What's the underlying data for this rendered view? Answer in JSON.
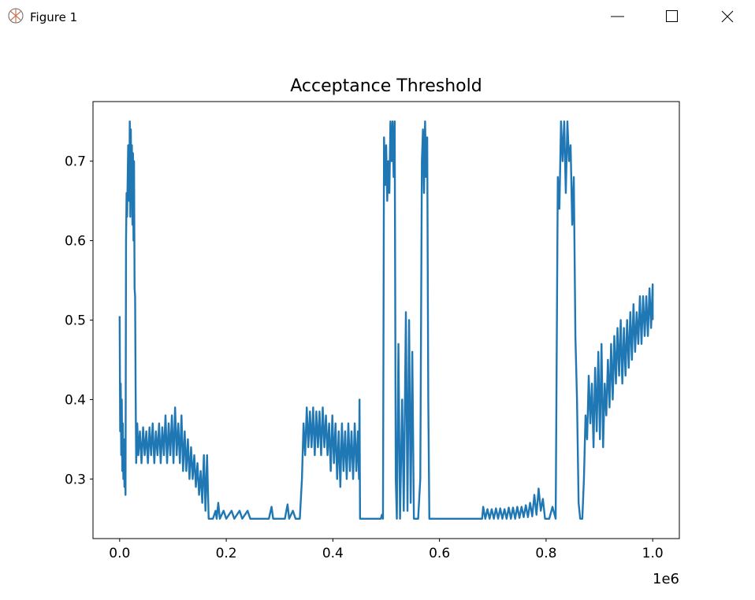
{
  "window": {
    "title": "Figure 1"
  },
  "chart_data": {
    "type": "line",
    "title": "Acceptance Threshold",
    "x": [
      0,
      1000,
      2000,
      3000,
      4000,
      5000,
      6000,
      7000,
      8000,
      9000,
      10000,
      11000,
      12000,
      13000,
      14000,
      16000,
      18000,
      19000,
      20000,
      21000,
      22000,
      23000,
      24000,
      25000,
      26000,
      27000,
      28000,
      29000,
      30000,
      31000,
      33000,
      35000,
      38000,
      41000,
      44000,
      47000,
      50000,
      53000,
      56000,
      59000,
      62000,
      65000,
      68000,
      71000,
      74000,
      77000,
      80000,
      83000,
      86000,
      89000,
      92000,
      95000,
      98000,
      101000,
      104000,
      107000,
      110000,
      113000,
      116000,
      119000,
      122000,
      125000,
      128000,
      131000,
      134000,
      137000,
      140000,
      143000,
      146000,
      149000,
      152000,
      155000,
      158000,
      161000,
      164000,
      167000,
      175000,
      180000,
      182000,
      185000,
      188000,
      195000,
      200000,
      210000,
      215000,
      225000,
      230000,
      240000,
      245000,
      280000,
      285000,
      288000,
      310000,
      315000,
      318000,
      325000,
      330000,
      338000,
      342000,
      345000,
      348000,
      351000,
      354000,
      357000,
      360000,
      363000,
      366000,
      369000,
      372000,
      375000,
      378000,
      381000,
      384000,
      387000,
      390000,
      393000,
      396000,
      399000,
      402000,
      405000,
      408000,
      411000,
      414000,
      417000,
      420000,
      423000,
      426000,
      429000,
      432000,
      435000,
      438000,
      441000,
      444000,
      447000,
      449000,
      450000,
      451000,
      490000,
      492000,
      494000,
      496000,
      498000,
      500000,
      502000,
      504000,
      506000,
      508000,
      510000,
      512000,
      514000,
      516000,
      518000,
      520000,
      523000,
      526000,
      530000,
      533000,
      537000,
      540000,
      543000,
      546000,
      549000,
      552000,
      560000,
      564000,
      567000,
      569000,
      571000,
      573000,
      575000,
      577000,
      579000,
      581000,
      600000,
      680000,
      682000,
      686000,
      690000,
      694000,
      698000,
      702000,
      706000,
      710000,
      714000,
      718000,
      722000,
      726000,
      730000,
      734000,
      738000,
      742000,
      746000,
      750000,
      754000,
      758000,
      762000,
      766000,
      770000,
      774000,
      778000,
      782000,
      786000,
      790000,
      794000,
      798000,
      806000,
      812000,
      818000,
      822000,
      825000,
      828000,
      831000,
      834000,
      837000,
      840000,
      843000,
      846000,
      849000,
      852000,
      855000,
      858000,
      861000,
      864000,
      868000,
      871000,
      874000,
      877000,
      880000,
      883000,
      886000,
      889000,
      892000,
      895000,
      898000,
      901000,
      904000,
      907000,
      910000,
      913000,
      916000,
      919000,
      922000,
      925000,
      928000,
      931000,
      934000,
      937000,
      940000,
      943000,
      946000,
      949000,
      952000,
      955000,
      958000,
      961000,
      964000,
      967000,
      970000,
      973000,
      976000,
      979000,
      982000,
      985000,
      988000,
      991000,
      994000,
      997000,
      1000000,
      1000000
    ],
    "series": [
      {
        "color": "#1f77b4",
        "values": [
          0.505,
          0.36,
          0.42,
          0.33,
          0.4,
          0.31,
          0.37,
          0.3,
          0.35,
          0.29,
          0.33,
          0.28,
          0.6,
          0.66,
          0.63,
          0.72,
          0.65,
          0.75,
          0.63,
          0.74,
          0.65,
          0.72,
          0.62,
          0.71,
          0.6,
          0.7,
          0.54,
          0.53,
          0.41,
          0.32,
          0.37,
          0.33,
          0.36,
          0.32,
          0.365,
          0.33,
          0.36,
          0.32,
          0.365,
          0.33,
          0.37,
          0.32,
          0.36,
          0.33,
          0.37,
          0.32,
          0.365,
          0.33,
          0.38,
          0.32,
          0.37,
          0.33,
          0.38,
          0.32,
          0.39,
          0.33,
          0.37,
          0.32,
          0.38,
          0.31,
          0.36,
          0.31,
          0.35,
          0.3,
          0.34,
          0.3,
          0.33,
          0.29,
          0.32,
          0.28,
          0.31,
          0.27,
          0.33,
          0.26,
          0.33,
          0.25,
          0.25,
          0.26,
          0.25,
          0.27,
          0.25,
          0.26,
          0.25,
          0.26,
          0.25,
          0.26,
          0.25,
          0.26,
          0.25,
          0.25,
          0.265,
          0.25,
          0.25,
          0.268,
          0.25,
          0.26,
          0.25,
          0.25,
          0.3,
          0.37,
          0.33,
          0.39,
          0.34,
          0.385,
          0.34,
          0.39,
          0.33,
          0.385,
          0.34,
          0.385,
          0.33,
          0.39,
          0.34,
          0.38,
          0.33,
          0.37,
          0.31,
          0.38,
          0.32,
          0.37,
          0.3,
          0.36,
          0.29,
          0.37,
          0.31,
          0.36,
          0.3,
          0.37,
          0.31,
          0.36,
          0.3,
          0.37,
          0.31,
          0.36,
          0.3,
          0.4,
          0.25,
          0.25,
          0.255,
          0.25,
          0.73,
          0.67,
          0.72,
          0.65,
          0.7,
          0.66,
          0.75,
          0.7,
          0.75,
          0.68,
          0.75,
          0.3,
          0.25,
          0.47,
          0.25,
          0.4,
          0.26,
          0.51,
          0.26,
          0.5,
          0.27,
          0.46,
          0.25,
          0.25,
          0.3,
          0.7,
          0.74,
          0.66,
          0.75,
          0.68,
          0.73,
          0.4,
          0.25,
          0.25,
          0.25,
          0.265,
          0.25,
          0.262,
          0.25,
          0.262,
          0.25,
          0.263,
          0.25,
          0.263,
          0.25,
          0.262,
          0.25,
          0.264,
          0.25,
          0.264,
          0.25,
          0.265,
          0.251,
          0.265,
          0.252,
          0.267,
          0.252,
          0.27,
          0.253,
          0.28,
          0.255,
          0.288,
          0.26,
          0.275,
          0.25,
          0.25,
          0.265,
          0.25,
          0.68,
          0.64,
          0.75,
          0.7,
          0.75,
          0.66,
          0.75,
          0.7,
          0.72,
          0.62,
          0.68,
          0.48,
          0.4,
          0.27,
          0.25,
          0.25,
          0.3,
          0.38,
          0.35,
          0.43,
          0.37,
          0.42,
          0.34,
          0.44,
          0.36,
          0.46,
          0.35,
          0.47,
          0.34,
          0.42,
          0.38,
          0.45,
          0.39,
          0.47,
          0.4,
          0.48,
          0.42,
          0.49,
          0.43,
          0.5,
          0.42,
          0.49,
          0.43,
          0.5,
          0.44,
          0.51,
          0.45,
          0.52,
          0.46,
          0.51,
          0.47,
          0.53,
          0.47,
          0.53,
          0.48,
          0.53,
          0.48,
          0.54,
          0.49,
          0.545,
          0.5
        ]
      }
    ],
    "xlim": [
      -50000,
      1050000
    ],
    "ylim": [
      0.225,
      0.775
    ],
    "xticks": [
      {
        "value": 0,
        "label": "0.0"
      },
      {
        "value": 200000,
        "label": "0.2"
      },
      {
        "value": 400000,
        "label": "0.4"
      },
      {
        "value": 600000,
        "label": "0.6"
      },
      {
        "value": 800000,
        "label": "0.8"
      },
      {
        "value": 1000000,
        "label": "1.0"
      }
    ],
    "x_offset_label": "1e6",
    "yticks": [
      0.3,
      0.4,
      0.5,
      0.6,
      0.7
    ],
    "grid": false
  }
}
